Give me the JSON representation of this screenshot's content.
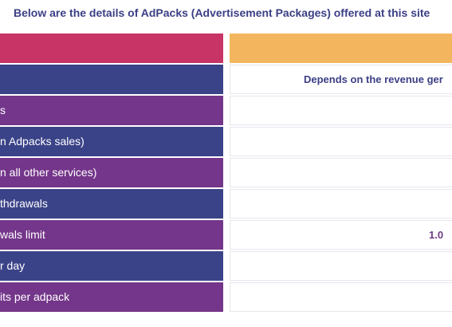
{
  "page": {
    "heading": "Below are the details of AdPacks (Advertisement Packages) offered at this site"
  },
  "table": {
    "rows": [
      {
        "left": "",
        "right": "",
        "left_color": "#c83466",
        "right_color": "#f3b65f"
      },
      {
        "left": "",
        "right": "Depends on the revenue ger",
        "left_color": "#3b4388",
        "right_color": "#ffffff"
      },
      {
        "left": "s",
        "right": "",
        "left_color": "#74368a",
        "right_color": "#ffffff"
      },
      {
        "left": "n Adpacks sales)",
        "right": "",
        "left_color": "#3b4388",
        "right_color": "#ffffff"
      },
      {
        "left": "n all other services)",
        "right": "",
        "left_color": "#74368a",
        "right_color": "#ffffff"
      },
      {
        "left": "thdrawals",
        "right": "",
        "left_color": "#3b4388",
        "right_color": "#ffffff"
      },
      {
        "left": "wals limit",
        "right": "1.0",
        "left_color": "#74368a",
        "right_color": "#ffffff"
      },
      {
        "left": "r day",
        "right": "",
        "left_color": "#3b4388",
        "right_color": "#ffffff"
      },
      {
        "left": "its per adpack",
        "right": "",
        "left_color": "#74368a",
        "right_color": "#ffffff"
      }
    ]
  }
}
